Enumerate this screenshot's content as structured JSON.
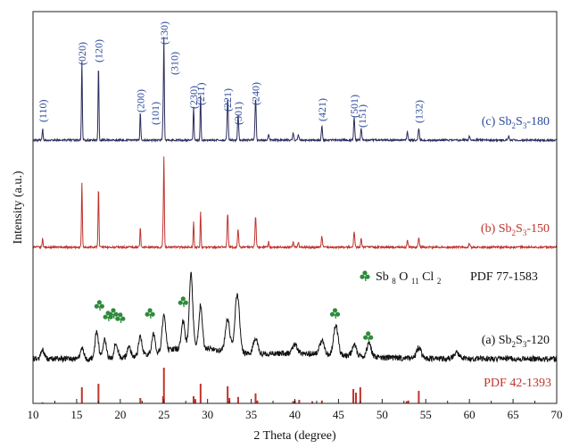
{
  "chart_data": {
    "type": "line",
    "xlabel": "2 Theta (degree)",
    "ylabel": "Intensity (a.u.)",
    "xlim": [
      10,
      70
    ],
    "x_ticks": [
      "10",
      "15",
      "20",
      "25",
      "30",
      "35",
      "40",
      "45",
      "50",
      "55",
      "60",
      "65",
      "70"
    ],
    "y_ticks_shown": false,
    "grid": false,
    "legend": "none",
    "series": [
      {
        "id": "c",
        "label_prefix": "(c)  Sb",
        "label_sub1": "2",
        "label_mid": "S",
        "label_sub2": "3",
        "label_suffix": "-180",
        "color": "#2b2d5e",
        "label_color": "#2b4a9a",
        "peaks": [
          [
            11.1,
            12
          ],
          [
            15.6,
            78
          ],
          [
            17.5,
            75
          ],
          [
            22.3,
            28
          ],
          [
            24.9,
            22
          ],
          [
            25.0,
            100
          ],
          [
            28.4,
            33
          ],
          [
            29.2,
            45
          ],
          [
            32.3,
            42
          ],
          [
            33.5,
            25
          ],
          [
            35.5,
            42
          ],
          [
            37.0,
            6
          ],
          [
            39.8,
            7
          ],
          [
            40.4,
            6
          ],
          [
            43.1,
            14
          ],
          [
            46.8,
            22
          ],
          [
            47.6,
            12
          ],
          [
            52.9,
            8
          ],
          [
            54.2,
            12
          ],
          [
            60.0,
            4
          ],
          [
            64.5,
            4
          ]
        ]
      },
      {
        "id": "b",
        "label_prefix": "(b)  Sb",
        "label_sub1": "2",
        "label_mid": "S",
        "label_sub2": "3",
        "label_suffix": "-150",
        "color": "#c0332d",
        "label_color": "#c0332d",
        "peaks": [
          [
            11.1,
            10
          ],
          [
            15.6,
            72
          ],
          [
            17.5,
            68
          ],
          [
            22.3,
            22
          ],
          [
            24.9,
            20
          ],
          [
            25.0,
            100
          ],
          [
            28.4,
            28
          ],
          [
            29.2,
            40
          ],
          [
            32.3,
            38
          ],
          [
            33.5,
            20
          ],
          [
            35.5,
            35
          ],
          [
            37.0,
            6
          ],
          [
            39.8,
            6
          ],
          [
            40.4,
            6
          ],
          [
            43.1,
            12
          ],
          [
            46.8,
            18
          ],
          [
            47.6,
            10
          ],
          [
            52.9,
            7
          ],
          [
            54.2,
            10
          ],
          [
            60.0,
            4
          ]
        ]
      },
      {
        "id": "a",
        "label_prefix": "(a)  Sb",
        "label_sub1": "2",
        "label_mid": "S",
        "label_sub2": "3",
        "label_suffix": "-120",
        "color": "#111111",
        "label_color": "#111111",
        "peaks": [
          [
            11.1,
            8
          ],
          [
            15.6,
            10
          ],
          [
            17.3,
            25
          ],
          [
            18.2,
            18
          ],
          [
            19.5,
            15
          ],
          [
            21.0,
            10
          ],
          [
            22.3,
            18
          ],
          [
            23.8,
            18
          ],
          [
            25.0,
            35
          ],
          [
            27.2,
            25
          ],
          [
            28.1,
            70
          ],
          [
            29.2,
            40
          ],
          [
            32.3,
            30
          ],
          [
            33.4,
            55
          ],
          [
            35.5,
            15
          ],
          [
            40.0,
            8
          ],
          [
            43.1,
            12
          ],
          [
            44.7,
            28
          ],
          [
            46.8,
            10
          ],
          [
            48.5,
            12
          ],
          [
            54.2,
            10
          ],
          [
            58.5,
            6
          ]
        ]
      }
    ],
    "reference_42_1393": {
      "label": "PDF 42-1393",
      "color": "#c0332d",
      "sticks": [
        [
          11.1,
          3
        ],
        [
          15.6,
          45
        ],
        [
          17.5,
          55
        ],
        [
          22.3,
          15
        ],
        [
          24.9,
          20
        ],
        [
          25.0,
          100
        ],
        [
          28.4,
          20
        ],
        [
          28.6,
          12
        ],
        [
          29.2,
          55
        ],
        [
          32.3,
          48
        ],
        [
          32.5,
          15
        ],
        [
          33.5,
          18
        ],
        [
          35.5,
          28
        ],
        [
          35.7,
          8
        ],
        [
          39.8,
          6
        ],
        [
          40.0,
          8
        ],
        [
          40.5,
          10
        ],
        [
          42.0,
          6
        ],
        [
          43.1,
          8
        ],
        [
          46.7,
          40
        ],
        [
          47.0,
          30
        ],
        [
          47.5,
          45
        ],
        [
          52.8,
          6
        ],
        [
          53.0,
          8
        ],
        [
          54.2,
          35
        ]
      ]
    },
    "impurity": {
      "formula_main": "Sb",
      "formula_sub1": "8",
      "formula_mid1": "O",
      "formula_sub2": "11",
      "formula_mid2": "Cl",
      "formula_sub3": "2",
      "pdf_label": "PDF 77-1583",
      "marker": "clover-icon",
      "color": "#2e8b3a",
      "marks": [
        17.6,
        18.6,
        19.2,
        20.0,
        23.4,
        27.2,
        44.6,
        48.4
      ]
    },
    "hkl_labels": [
      {
        "hkl": "(110)",
        "x": 11.1
      },
      {
        "hkl": "(020)",
        "x": 15.6
      },
      {
        "hkl": "(120)",
        "x": 17.5
      },
      {
        "hkl": "(200)",
        "x": 22.3
      },
      {
        "hkl": "(101)",
        "x": 24.0
      },
      {
        "hkl": "(130)",
        "x": 25.0
      },
      {
        "hkl": "(310)",
        "x": 26.2
      },
      {
        "hkl": "(230)",
        "x": 28.4
      },
      {
        "hkl": "(211)",
        "x": 29.2
      },
      {
        "hkl": "(221)",
        "x": 32.3
      },
      {
        "hkl": "(301)",
        "x": 33.5
      },
      {
        "hkl": "(240)",
        "x": 35.5
      },
      {
        "hkl": "(421)",
        "x": 43.1
      },
      {
        "hkl": "(501)",
        "x": 46.8
      },
      {
        "hkl": "(151)",
        "x": 47.7
      },
      {
        "hkl": "(132)",
        "x": 54.2
      }
    ]
  }
}
